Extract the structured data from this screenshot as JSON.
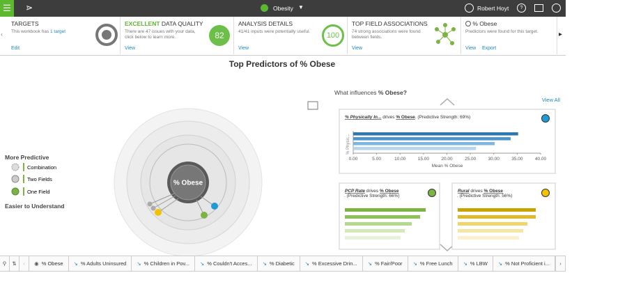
{
  "topbar": {
    "workbook": "Obesity",
    "user": "Robert Hoyt"
  },
  "cards": [
    {
      "title": "TARGETS",
      "text": "This workbook has ",
      "link": "1 target",
      "action": "Edit"
    },
    {
      "highlight": "EXCELLENT",
      "title": " DATA QUALITY",
      "text": "There are 47 issues with your data, click below to learn more.",
      "badge": "82",
      "action": "View"
    },
    {
      "title": "ANALYSIS DETAILS",
      "text": "41/41 inputs were potentially useful.",
      "badge": "100",
      "action": "View"
    },
    {
      "title": "TOP FIELD ASSOCIATIONS",
      "text": "74 strong associations were found between fields.",
      "action": "View"
    },
    {
      "title": "% Obese",
      "text": "Predictors were found for this target.",
      "action": "View",
      "action2": "Export"
    }
  ],
  "main_title": "Top Predictors of % Obese",
  "legend": {
    "heading": "More Predictive",
    "items": [
      "Combination",
      "Two Fields",
      "One Field"
    ],
    "footer": "Easier to Understand"
  },
  "diagram": {
    "center": "% Obese"
  },
  "panel": {
    "question": "What influences ",
    "question_target": "% Obese?",
    "view_all": "View All",
    "main_chart": {
      "field": "% Physically In...",
      "connector": " drives ",
      "target": "% Obese",
      "strength": ". (Predictive Strength: 69%)",
      "y_label": "% Physic...",
      "x_label": "Mean % Obese",
      "xlim": [
        0,
        40
      ],
      "xticks": [
        {
          "value": 0,
          "label": "0.00"
        },
        {
          "value": 5,
          "label": "5.00"
        },
        {
          "value": 10,
          "label": "10.00"
        },
        {
          "value": 15,
          "label": "15.00"
        },
        {
          "value": 20,
          "label": "20.00"
        },
        {
          "value": 25,
          "label": "25.00"
        },
        {
          "value": 30,
          "label": "30.00"
        },
        {
          "value": 35,
          "label": "35.00"
        },
        {
          "value": 40,
          "label": "40.00"
        }
      ],
      "values": [
        35.2,
        33.6,
        30.2,
        26.2
      ],
      "colors": [
        "#2e78ad",
        "#4b95c8",
        "#7db5de",
        "#b6d6ee"
      ]
    },
    "cards": [
      {
        "field": "PCP Rate",
        "connector": " drives ",
        "target": "% Obese",
        "strength": ". (Predictive Strength: 66%)"
      },
      {
        "field": "Rural",
        "connector": " drives ",
        "target": "% Obese",
        "strength": ". (Predictive Strength: 56%)"
      }
    ]
  },
  "tabs": [
    "% Obese",
    "% Adults Uninsured",
    "% Children in Pov...",
    "% Couldn't Acces...",
    "% Diabetic",
    "% Excessive Drin...",
    "% Fair/Poor",
    "% Free Lunch",
    "% LBW",
    "% Not Proficient i..."
  ]
}
